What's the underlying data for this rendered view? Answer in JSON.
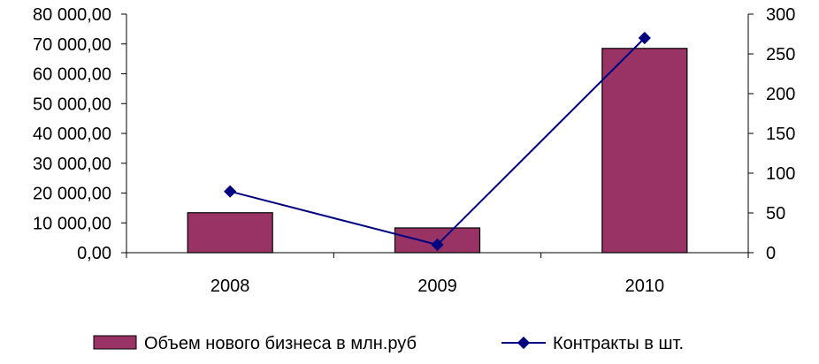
{
  "chart_data": {
    "type": "bar",
    "categories": [
      "2008",
      "2009",
      "2010"
    ],
    "series": [
      {
        "name": "Объем нового бизнеса в млн.руб",
        "kind": "bar",
        "axis": "left",
        "color": "#993366",
        "values": [
          13400,
          8300,
          68500
        ]
      },
      {
        "name": "Контракты в шт.",
        "kind": "line",
        "axis": "right",
        "color": "#000080",
        "values": [
          77,
          10,
          270
        ]
      }
    ],
    "y_left": {
      "range": [
        0,
        80000
      ],
      "ticks": [
        "0,00",
        "10 000,00",
        "20 000,00",
        "30 000,00",
        "40 000,00",
        "50 000,00",
        "60 000,00",
        "70 000,00",
        "80 000,00"
      ]
    },
    "y_right": {
      "range": [
        0,
        300
      ],
      "ticks": [
        "0",
        "50",
        "100",
        "150",
        "200",
        "250",
        "300"
      ]
    },
    "grid": false,
    "legend_position": "bottom"
  }
}
